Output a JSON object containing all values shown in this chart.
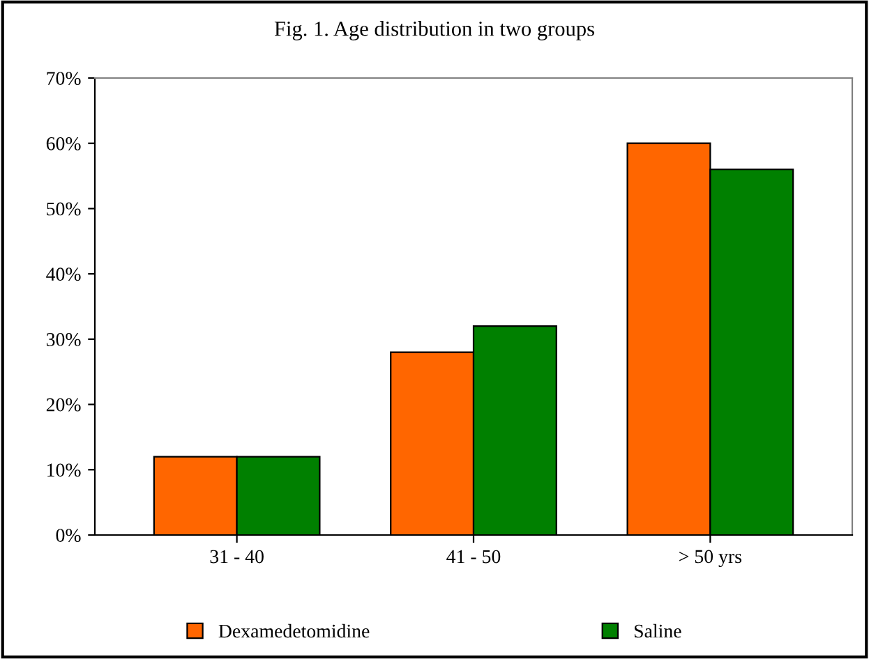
{
  "chart_data": {
    "type": "bar",
    "title": "Fig. 1. Age distribution in two groups",
    "categories": [
      "31 - 40",
      "41 - 50",
      "> 50 yrs"
    ],
    "series": [
      {
        "name": "Dexamedetomidine",
        "color": "#ff6600",
        "values": [
          12,
          28,
          60
        ]
      },
      {
        "name": "Saline",
        "color": "#008000",
        "values": [
          12,
          32,
          56
        ]
      }
    ],
    "ylim": [
      0,
      70
    ],
    "yticks": [
      {
        "value": 0,
        "label": "0%"
      },
      {
        "value": 10,
        "label": "10%"
      },
      {
        "value": 20,
        "label": "20%"
      },
      {
        "value": 30,
        "label": "30%"
      },
      {
        "value": 40,
        "label": "40%"
      },
      {
        "value": 50,
        "label": "50%"
      },
      {
        "value": 60,
        "label": "60%"
      },
      {
        "value": 70,
        "label": "70%"
      }
    ],
    "grid": false,
    "legend": "bottom"
  }
}
